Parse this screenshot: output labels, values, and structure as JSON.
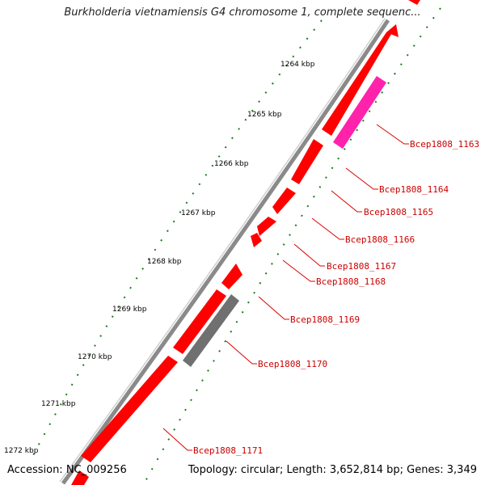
{
  "title": "Burkholderia vietnamiensis G4 chromosome 1, complete sequenc...",
  "footer": {
    "accession": "Accession: NC_009256",
    "topology": "Topology: circular; Length: 3,652,814 bp; Genes: 3,349"
  },
  "kbp_labels": [
    "1264 kbp",
    "1265 kbp",
    "1266 kbp",
    "1267 kbp",
    "1268 kbp",
    "1269 kbp",
    "1270 kbp",
    "1271 kbp",
    "1272 kbp"
  ],
  "gene_labels": [
    "Bcep1808_1163",
    "Bcep1808_1164",
    "Bcep1808_1165",
    "Bcep1808_1166",
    "Bcep1808_1167",
    "Bcep1808_1168",
    "Bcep1808_1169",
    "Bcep1808_1170",
    "Bcep1808_1171"
  ],
  "colors": {
    "gene": "#ff0000",
    "gene_highlight": "#ff22aa",
    "pseudo_gene": "#707070",
    "backbone": "#808080",
    "tick": "#1f7a1f",
    "label_line": "#dd0000"
  }
}
